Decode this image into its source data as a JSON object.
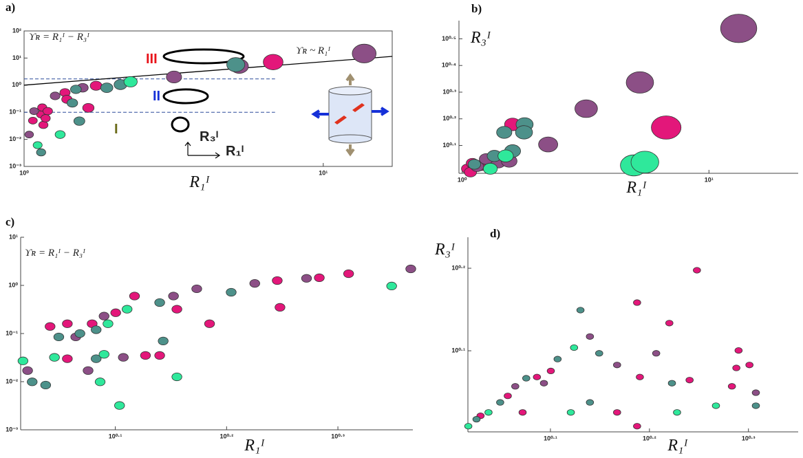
{
  "chart_data": [
    {
      "type": "scatter",
      "label": "a)",
      "x_label": "R₁ᴵ",
      "xscale": "log",
      "yscale": "log",
      "xlim": [
        1,
        17
      ],
      "ylim": [
        0.001,
        100
      ],
      "xticks": [
        {
          "value": 1,
          "label": "10⁰"
        },
        {
          "value": 10,
          "label": "10¹"
        }
      ],
      "yticks": [
        {
          "value": 0.001,
          "label": "10⁻³"
        },
        {
          "value": 0.01,
          "label": "10⁻²"
        },
        {
          "value": 0.1,
          "label": "10⁻¹"
        },
        {
          "value": 1,
          "label": "10⁰"
        },
        {
          "value": 10,
          "label": "10¹"
        },
        {
          "value": 100,
          "label": "10²"
        }
      ],
      "annotations": [
        {
          "text": "ϒʀ = R₁ᴵ − R₃ᴵ",
          "color": "#222222"
        },
        {
          "text": "III",
          "color": "#e8141b"
        },
        {
          "text": "II",
          "color": "#1530d8"
        },
        {
          "text": "I",
          "color": "#6b6b1a"
        },
        {
          "text": "ϒʀ ~ R₁ᴵ",
          "color": "#222222"
        },
        {
          "text": "R₃ᴵ",
          "color": "#222222"
        },
        {
          "text": "R₁ᴵ",
          "color": "#222222"
        }
      ],
      "reference_lines": [
        {
          "y": 1.7,
          "x_end": 6.9
        },
        {
          "y": 0.1,
          "x_end": 6.9
        }
      ],
      "trend_line": {
        "x": [
          1,
          17
        ],
        "y": [
          1,
          11.5
        ]
      },
      "series": [
        {
          "color": "#e3177a",
          "x": [
            1.64,
            1.16,
            1.14,
            1.15,
            1.2,
            1.18,
            1.37,
            1.74,
            1.39,
            1.07,
            6.8
          ],
          "values": [
            0.145,
            0.034,
            0.083,
            0.15,
            0.11,
            0.06,
            0.53,
            0.95,
            0.3,
            0.049,
            7.1
          ]
        },
        {
          "color": "#8c4f86",
          "x": [
            13.7,
            5.24,
            3.17,
            1.04,
            1.27,
            1.57,
            1.08
          ],
          "values": [
            14.7,
            5.0,
            2.0,
            0.015,
            0.4,
            0.8,
            0.11
          ]
        },
        {
          "color": "#4d918a",
          "x": [
            5.1,
            2.1,
            1.45,
            1.53,
            1.14,
            1.49,
            1.89
          ],
          "values": [
            5.7,
            1.05,
            0.22,
            0.047,
            0.0033,
            0.7,
            0.8
          ]
        },
        {
          "color": "#2fe89b",
          "x": [
            2.27,
            1.32,
            1.11
          ],
          "values": [
            1.33,
            0.015,
            0.0061
          ]
        }
      ]
    },
    {
      "type": "scatter",
      "label": "b)",
      "x_label": "R₁ᴵ",
      "y_label": "R₃ᴵ",
      "xscale": "log",
      "yscale": "log",
      "xlim": [
        0.97,
        23
      ],
      "ylim": [
        0.99,
        3.7
      ],
      "xticks": [
        {
          "value": 1,
          "label": "10⁰"
        },
        {
          "value": 10,
          "label": "10¹"
        }
      ],
      "yticks": [
        {
          "value": 1.2589,
          "label": "10⁰·¹"
        },
        {
          "value": 1.5849,
          "label": "10⁰·²"
        },
        {
          "value": 1.9953,
          "label": "10⁰·³"
        },
        {
          "value": 2.5119,
          "label": "10⁰·⁴"
        },
        {
          "value": 3.1623,
          "label": "10⁰·⁵"
        }
      ],
      "series": [
        {
          "color": "#e3177a",
          "x": [
            6.71,
            1.6,
            1.05,
            1.1,
            1.2,
            1.3,
            1.08
          ],
          "values": [
            1.47,
            1.51,
            1.03,
            1.08,
            1.06,
            1.1,
            1.0
          ]
        },
        {
          "color": "#8c4f86",
          "x": [
            13.2,
            5.25,
            3.18,
            2.23,
            1.15,
            1.4,
            1.25,
            1.55
          ],
          "values": [
            3.46,
            2.17,
            1.73,
            1.27,
            1.05,
            1.09,
            1.12,
            1.1
          ]
        },
        {
          "color": "#4d918a",
          "x": [
            1.79,
            1.48,
            1.78,
            1.12,
            1.35,
            1.6
          ],
          "values": [
            1.51,
            1.41,
            1.41,
            1.07,
            1.15,
            1.2
          ]
        },
        {
          "color": "#2fe89b",
          "x": [
            4.96,
            5.5,
            1.3,
            1.5
          ],
          "values": [
            1.06,
            1.09,
            1.03,
            1.15
          ]
        }
      ]
    },
    {
      "type": "scatter",
      "label": "c)",
      "x_label": "R₁ᴵ",
      "xscale": "log",
      "yscale": "log",
      "xlim": [
        1.035,
        2.33
      ],
      "ylim": [
        0.001,
        10
      ],
      "xticks": [
        {
          "value": 1.2589,
          "label": "10⁰·¹"
        },
        {
          "value": 1.5849,
          "label": "10⁰·²"
        },
        {
          "value": 1.9953,
          "label": "10⁰·³"
        }
      ],
      "yticks": [
        {
          "value": 0.001,
          "label": "10⁻³"
        },
        {
          "value": 0.01,
          "label": "10⁻²"
        },
        {
          "value": 0.1,
          "label": "10⁻¹"
        },
        {
          "value": 1,
          "label": "10⁰"
        },
        {
          "value": 10,
          "label": "10¹"
        }
      ],
      "annotations": [
        {
          "text": "ϒʀ = R₁ᴵ − R₃ᴵ",
          "color": "#222222"
        }
      ],
      "series": [
        {
          "color": "#e3177a",
          "x": [
            2.04,
            1.92,
            1.76,
            1.77,
            1.53,
            1.43,
            1.31,
            1.26,
            1.2,
            1.14,
            1.1,
            1.38,
            1.34,
            1.14
          ],
          "values": [
            1.75,
            1.44,
            1.26,
            0.35,
            0.16,
            0.32,
            0.6,
            0.27,
            0.16,
            0.16,
            0.14,
            0.035,
            0.035,
            0.03
          ]
        },
        {
          "color": "#8c4f86",
          "x": [
            2.32,
            1.87,
            1.68,
            1.49,
            1.42,
            1.23,
            1.28,
            1.05,
            1.19,
            1.16
          ],
          "values": [
            2.2,
            1.4,
            1.1,
            0.85,
            0.6,
            0.23,
            0.032,
            0.017,
            0.017,
            0.085
          ]
        },
        {
          "color": "#4d918a",
          "x": [
            1.6,
            1.38,
            1.17,
            1.12,
            1.39,
            1.21,
            1.06,
            1.09,
            1.21
          ],
          "values": [
            0.72,
            0.44,
            0.1,
            0.085,
            0.07,
            0.03,
            0.0099,
            0.0085,
            0.12
          ]
        },
        {
          "color": "#2fe89b",
          "x": [
            2.23,
            1.29,
            1.23,
            1.11,
            1.04,
            1.22,
            1.43,
            1.27,
            1.24
          ],
          "values": [
            0.97,
            0.32,
            0.037,
            0.032,
            0.027,
            0.0099,
            0.0126,
            0.0032,
            0.16
          ]
        }
      ]
    },
    {
      "type": "scatter",
      "label": "d)",
      "x_label": "R₁ᴵ",
      "y_label": "R₃ᴵ",
      "xscale": "log",
      "yscale": "log",
      "xlim": [
        1.039,
        2.24
      ],
      "ylim": [
        1.004,
        1.728
      ],
      "xticks": [
        {
          "value": 1.2589,
          "label": "10⁰·¹"
        },
        {
          "value": 1.5849,
          "label": "10⁰·²"
        },
        {
          "value": 1.9953,
          "label": "10⁰·³"
        }
      ],
      "yticks": [
        {
          "value": 1.2589,
          "label": "10⁰·¹"
        },
        {
          "value": 1.5849,
          "label": "10⁰·²"
        }
      ],
      "series": [
        {
          "color": "#e3177a",
          "x": [
            1.77,
            1.54,
            1.66,
            2.0,
            1.94,
            1.92,
            1.74,
            1.55,
            1.26,
            1.22,
            1.14,
            1.07,
            1.18,
            1.47,
            1.95,
            1.54
          ],
          "values": [
            1.576,
            1.44,
            1.36,
            1.21,
            1.2,
            1.14,
            1.16,
            1.17,
            1.19,
            1.17,
            1.11,
            1.05,
            1.06,
            1.06,
            1.26,
            1.02
          ]
        },
        {
          "color": "#8c4f86",
          "x": [
            1.38,
            1.61,
            2.03,
            1.47,
            1.24,
            1.16
          ],
          "values": [
            1.31,
            1.25,
            1.12,
            1.21,
            1.15,
            1.14
          ]
        },
        {
          "color": "#4d918a",
          "x": [
            1.35,
            1.67,
            1.41,
            1.28,
            1.19,
            1.12,
            1.06,
            1.38,
            2.03
          ],
          "values": [
            1.41,
            1.15,
            1.25,
            1.23,
            1.166,
            1.09,
            1.04,
            1.09,
            1.08
          ]
        },
        {
          "color": "#2fe89b",
          "x": [
            1.33,
            1.09,
            1.04,
            1.32,
            1.85,
            1.69
          ],
          "values": [
            1.27,
            1.06,
            1.02,
            1.06,
            1.08,
            1.06
          ]
        }
      ]
    }
  ]
}
